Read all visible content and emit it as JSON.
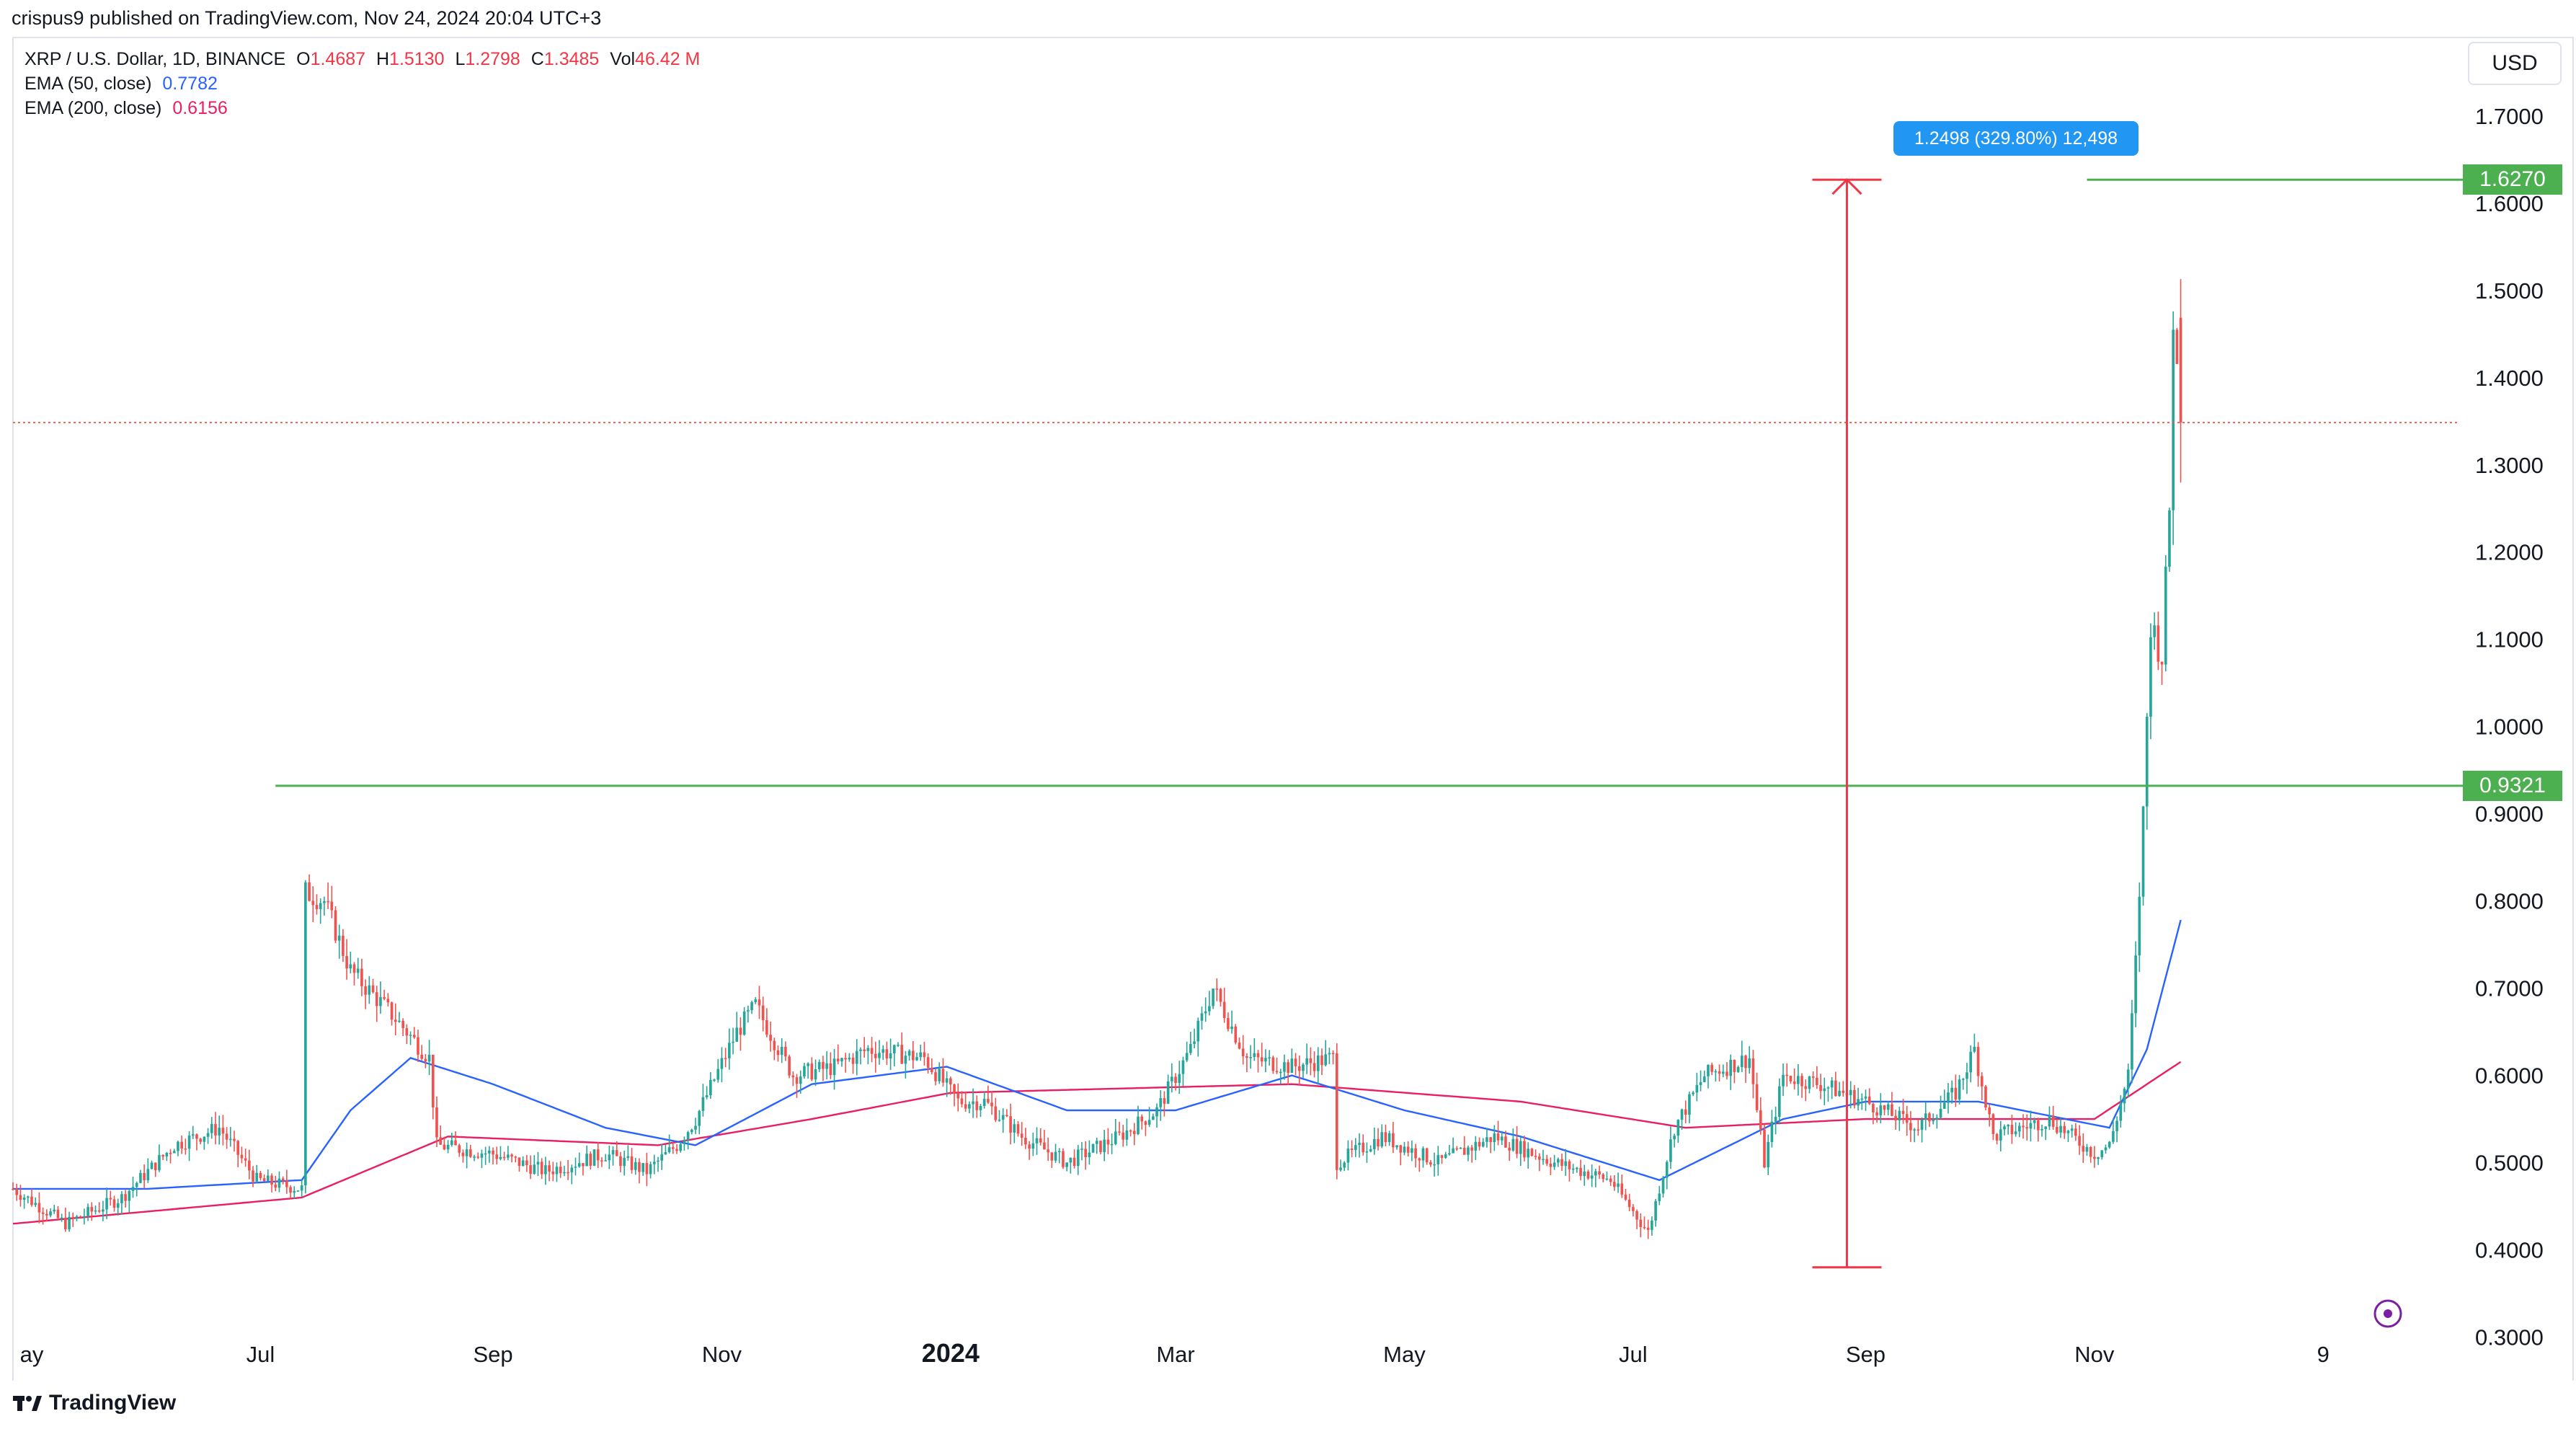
{
  "header": {
    "published_text": "crispus9 published on TradingView.com, Nov 24, 2024 20:04 UTC+3"
  },
  "legend": {
    "symbol": "XRP / U.S. Dollar, 1D, BINANCE",
    "ohlc": {
      "o_label": "O",
      "o_value": "1.4687",
      "h_label": "H",
      "h_value": "1.5130",
      "l_label": "L",
      "l_value": "1.2798",
      "c_label": "C",
      "c_value": "1.3485",
      "vol_label": "Vol",
      "vol_value": "46.42 M"
    },
    "ema50": {
      "label": "EMA (50, close)",
      "value": "0.7782",
      "color": "#2962ff"
    },
    "ema200": {
      "label": "EMA (200, close)",
      "value": "0.6156",
      "color": "#e91e63"
    }
  },
  "currency": "USD",
  "measure_tooltip": "1.2498 (329.80%) 12,498",
  "price_badges": {
    "upper": "1.6270",
    "lower": "0.9321"
  },
  "footer": {
    "brand": "TradingView"
  },
  "colors": {
    "up": "#26a69a",
    "down": "#ef5350",
    "level_line": "#4caf50",
    "measure": "#f23645",
    "ema50": "#2962ff",
    "ema200": "#e91e63",
    "tooltip": "#2196f3"
  },
  "chart_data": {
    "type": "candlestick",
    "symbol": "XRP / U.S. Dollar",
    "interval": "1D",
    "exchange": "BINANCE",
    "y_axis": {
      "ticks": [
        0.3,
        0.4,
        0.5,
        0.6,
        0.7,
        0.8,
        0.9,
        1.0,
        1.1,
        1.2,
        1.3,
        1.4,
        1.5,
        1.6,
        1.7
      ],
      "range": [
        0.25,
        1.79
      ],
      "tick_decimals": 4,
      "side": "right"
    },
    "x_axis": {
      "labels": [
        {
          "label": "ay",
          "date": "2023-05-01",
          "bold": false
        },
        {
          "label": "Jul",
          "date": "2023-07-01",
          "bold": false
        },
        {
          "label": "Sep",
          "date": "2023-09-01",
          "bold": false
        },
        {
          "label": "Nov",
          "date": "2023-11-01",
          "bold": false
        },
        {
          "label": "2024",
          "date": "2024-01-01",
          "bold": true
        },
        {
          "label": "Mar",
          "date": "2024-03-01",
          "bold": false
        },
        {
          "label": "May",
          "date": "2024-05-01",
          "bold": false
        },
        {
          "label": "Jul",
          "date": "2024-07-01",
          "bold": false
        },
        {
          "label": "Sep",
          "date": "2024-09-01",
          "bold": false
        },
        {
          "label": "Nov",
          "date": "2024-11-01",
          "bold": false
        },
        {
          "label": "9",
          "date": "2025-01-01",
          "bold": false
        }
      ],
      "range": [
        "2023-04-26",
        "2025-02-03"
      ]
    },
    "price_path": [
      [
        "2023-04-26",
        0.47
      ],
      [
        "2023-05-10",
        0.43
      ],
      [
        "2023-05-25",
        0.46
      ],
      [
        "2023-06-08",
        0.52
      ],
      [
        "2023-06-20",
        0.54
      ],
      [
        "2023-06-30",
        0.48
      ],
      [
        "2023-07-12",
        0.47
      ],
      [
        "2023-07-13",
        0.81
      ],
      [
        "2023-07-18",
        0.8
      ],
      [
        "2023-07-25",
        0.72
      ],
      [
        "2023-08-05",
        0.67
      ],
      [
        "2023-08-15",
        0.62
      ],
      [
        "2023-08-17",
        0.52
      ],
      [
        "2023-09-01",
        0.51
      ],
      [
        "2023-09-15",
        0.49
      ],
      [
        "2023-10-01",
        0.51
      ],
      [
        "2023-10-12",
        0.49
      ],
      [
        "2023-10-20",
        0.52
      ],
      [
        "2023-10-25",
        0.55
      ],
      [
        "2023-11-05",
        0.65
      ],
      [
        "2023-11-10",
        0.68
      ],
      [
        "2023-11-20",
        0.6
      ],
      [
        "2023-12-01",
        0.61
      ],
      [
        "2023-12-10",
        0.63
      ],
      [
        "2023-12-25",
        0.62
      ],
      [
        "2024-01-03",
        0.57
      ],
      [
        "2024-01-10",
        0.57
      ],
      [
        "2024-01-20",
        0.53
      ],
      [
        "2024-02-01",
        0.5
      ],
      [
        "2024-02-15",
        0.53
      ],
      [
        "2024-02-25",
        0.56
      ],
      [
        "2024-03-05",
        0.63
      ],
      [
        "2024-03-11",
        0.7
      ],
      [
        "2024-03-20",
        0.62
      ],
      [
        "2024-04-01",
        0.61
      ],
      [
        "2024-04-12",
        0.62
      ],
      [
        "2024-04-13",
        0.5
      ],
      [
        "2024-04-25",
        0.53
      ],
      [
        "2024-05-10",
        0.5
      ],
      [
        "2024-05-25",
        0.53
      ],
      [
        "2024-06-10",
        0.5
      ],
      [
        "2024-06-25",
        0.48
      ],
      [
        "2024-07-05",
        0.42
      ],
      [
        "2024-07-12",
        0.54
      ],
      [
        "2024-07-20",
        0.6
      ],
      [
        "2024-08-01",
        0.62
      ],
      [
        "2024-08-05",
        0.5
      ],
      [
        "2024-08-10",
        0.6
      ],
      [
        "2024-08-20",
        0.59
      ],
      [
        "2024-09-01",
        0.57
      ],
      [
        "2024-09-15",
        0.54
      ],
      [
        "2024-09-25",
        0.58
      ],
      [
        "2024-09-30",
        0.63
      ],
      [
        "2024-10-05",
        0.53
      ],
      [
        "2024-10-20",
        0.55
      ],
      [
        "2024-11-01",
        0.51
      ],
      [
        "2024-11-05",
        0.52
      ],
      [
        "2024-11-10",
        0.6
      ],
      [
        "2024-11-12",
        0.73
      ],
      [
        "2024-11-13",
        0.81
      ],
      [
        "2024-11-14",
        0.9
      ],
      [
        "2024-11-16",
        1.12
      ],
      [
        "2024-11-19",
        1.08
      ],
      [
        "2024-11-21",
        1.25
      ],
      [
        "2024-11-22",
        1.47
      ],
      [
        "2024-11-24",
        1.3485
      ]
    ],
    "last_candle": {
      "date": "2024-11-24",
      "open": 1.4687,
      "high": 1.513,
      "low": 1.2798,
      "close": 1.3485
    },
    "ema50_path": [
      [
        "2023-04-26",
        0.47
      ],
      [
        "2023-06-01",
        0.47
      ],
      [
        "2023-07-12",
        0.48
      ],
      [
        "2023-07-25",
        0.56
      ],
      [
        "2023-08-10",
        0.62
      ],
      [
        "2023-09-01",
        0.59
      ],
      [
        "2023-10-01",
        0.54
      ],
      [
        "2023-10-25",
        0.52
      ],
      [
        "2023-11-25",
        0.59
      ],
      [
        "2023-12-31",
        0.61
      ],
      [
        "2024-02-01",
        0.56
      ],
      [
        "2024-03-01",
        0.56
      ],
      [
        "2024-04-01",
        0.6
      ],
      [
        "2024-05-01",
        0.56
      ],
      [
        "2024-06-01",
        0.53
      ],
      [
        "2024-07-08",
        0.48
      ],
      [
        "2024-08-10",
        0.55
      ],
      [
        "2024-09-01",
        0.57
      ],
      [
        "2024-10-01",
        0.57
      ],
      [
        "2024-11-05",
        0.54
      ],
      [
        "2024-11-15",
        0.63
      ],
      [
        "2024-11-24",
        0.7782
      ]
    ],
    "ema200_path": [
      [
        "2023-04-26",
        0.43
      ],
      [
        "2023-07-12",
        0.46
      ],
      [
        "2023-08-20",
        0.53
      ],
      [
        "2023-10-15",
        0.52
      ],
      [
        "2023-11-25",
        0.55
      ],
      [
        "2024-01-01",
        0.58
      ],
      [
        "2024-04-01",
        0.59
      ],
      [
        "2024-06-01",
        0.57
      ],
      [
        "2024-07-15",
        0.54
      ],
      [
        "2024-09-01",
        0.55
      ],
      [
        "2024-11-01",
        0.55
      ],
      [
        "2024-11-24",
        0.6156
      ]
    ],
    "horizontal_levels": [
      {
        "price": 1.627,
        "from": "2024-10-30",
        "label": "1.6270"
      },
      {
        "price": 0.9321,
        "from": "2023-07-05",
        "label": "0.9321"
      }
    ],
    "current_price_line": 1.3485,
    "measure": {
      "date": "2024-08-27",
      "from": 0.38,
      "to": 1.627,
      "label": "1.2498 (329.80%) 12,498"
    }
  }
}
